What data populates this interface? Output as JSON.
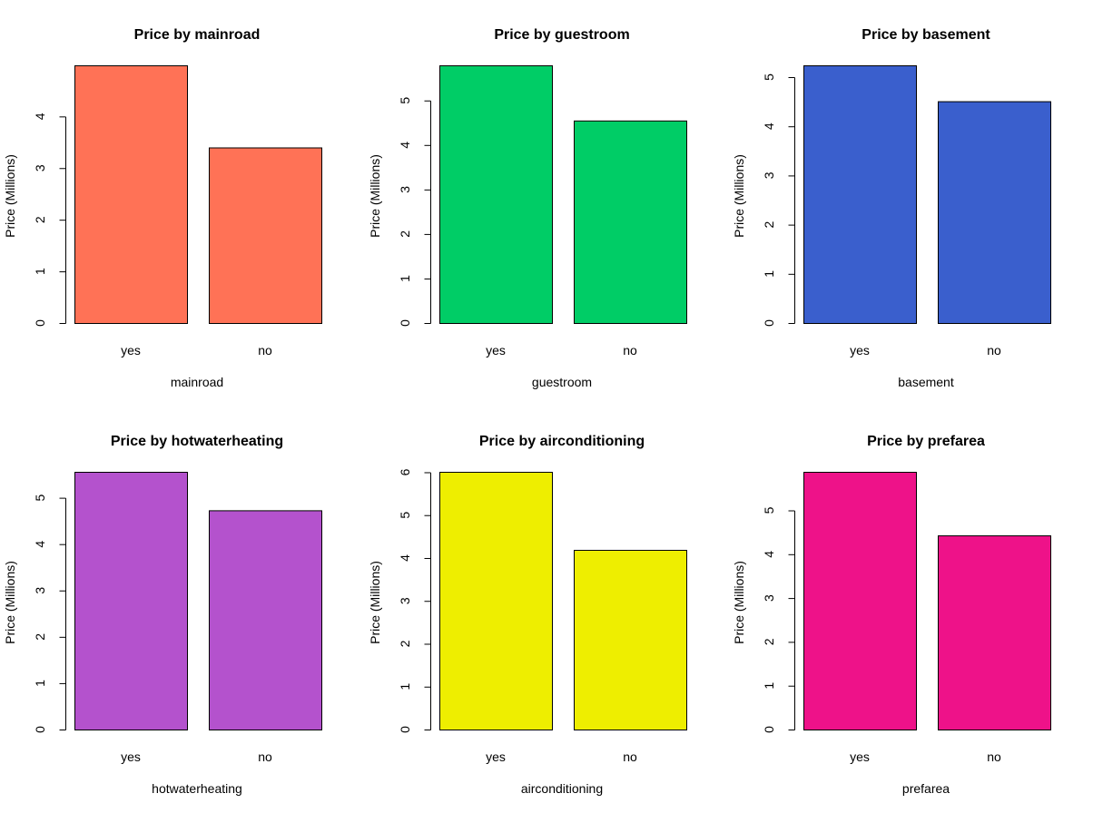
{
  "chart_data": [
    {
      "type": "bar",
      "title": "Price by mainroad",
      "xlabel": "mainroad",
      "ylabel": "Price (Millions)",
      "categories": [
        "yes",
        "no"
      ],
      "values": [
        4.99,
        3.4
      ],
      "color": "#FF7256",
      "yticks": [
        0,
        1,
        2,
        3,
        4
      ],
      "ylim": [
        0,
        4.99
      ],
      "grid": false
    },
    {
      "type": "bar",
      "title": "Price by guestroom",
      "xlabel": "guestroom",
      "ylabel": "Price (Millions)",
      "categories": [
        "yes",
        "no"
      ],
      "values": [
        5.79,
        4.55
      ],
      "color": "#00CD66",
      "yticks": [
        0,
        1,
        2,
        3,
        4,
        5
      ],
      "ylim": [
        0,
        5.79
      ],
      "grid": false
    },
    {
      "type": "bar",
      "title": "Price by basement",
      "xlabel": "basement",
      "ylabel": "Price (Millions)",
      "categories": [
        "yes",
        "no"
      ],
      "values": [
        5.24,
        4.51
      ],
      "color": "#3A5FCD",
      "yticks": [
        0,
        1,
        2,
        3,
        4,
        5
      ],
      "ylim": [
        0,
        5.24
      ],
      "grid": false
    },
    {
      "type": "bar",
      "title": "Price by hotwaterheating",
      "xlabel": "hotwaterheating",
      "ylabel": "Price (Millions)",
      "categories": [
        "yes",
        "no"
      ],
      "values": [
        5.56,
        4.73
      ],
      "color": "#B452CD",
      "yticks": [
        0,
        1,
        2,
        3,
        4,
        5
      ],
      "ylim": [
        0,
        5.56
      ],
      "grid": false
    },
    {
      "type": "bar",
      "title": "Price by airconditioning",
      "xlabel": "airconditioning",
      "ylabel": "Price (Millions)",
      "categories": [
        "yes",
        "no"
      ],
      "values": [
        6.01,
        4.19
      ],
      "color": "#EEEE00",
      "yticks": [
        0,
        1,
        2,
        3,
        4,
        5,
        6
      ],
      "ylim": [
        0,
        6.01
      ],
      "grid": false
    },
    {
      "type": "bar",
      "title": "Price by prefarea",
      "xlabel": "prefarea",
      "ylabel": "Price (Millions)",
      "categories": [
        "yes",
        "no"
      ],
      "values": [
        5.88,
        4.43
      ],
      "color": "#EE1289",
      "yticks": [
        0,
        1,
        2,
        3,
        4,
        5
      ],
      "ylim": [
        0,
        5.88
      ],
      "grid": false
    }
  ]
}
